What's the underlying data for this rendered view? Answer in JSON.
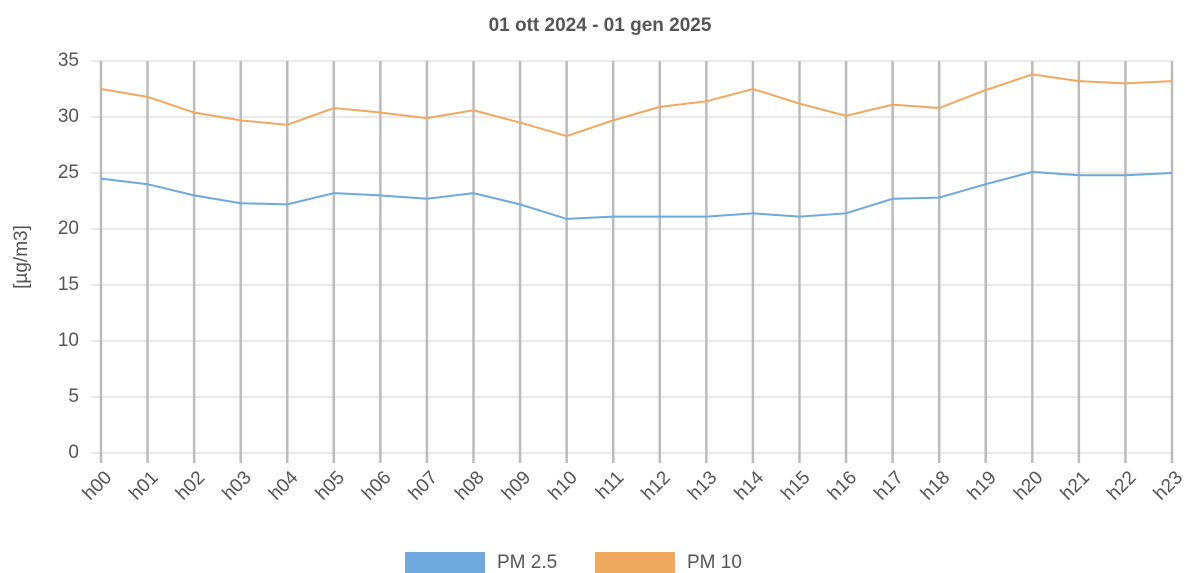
{
  "chart_data": {
    "type": "line",
    "title": "01 ott 2024 - 01 gen 2025",
    "y_label": "[µg/m3]",
    "categories": [
      "h00",
      "h01",
      "h02",
      "h03",
      "h04",
      "h05",
      "h06",
      "h07",
      "h08",
      "h09",
      "h10",
      "h11",
      "h12",
      "h13",
      "h14",
      "h15",
      "h16",
      "h17",
      "h18",
      "h19",
      "h20",
      "h21",
      "h22",
      "h23"
    ],
    "series": [
      {
        "name": "PM 2.5",
        "color": "#6fa8dc",
        "values": [
          24.5,
          24.0,
          23.0,
          22.3,
          22.2,
          23.2,
          23.0,
          22.7,
          23.2,
          22.2,
          20.9,
          21.1,
          21.1,
          21.1,
          21.4,
          21.1,
          21.4,
          22.7,
          22.8,
          24.0,
          25.1,
          24.8,
          24.8,
          25.0
        ]
      },
      {
        "name": "PM 10",
        "color": "#f0a860",
        "values": [
          32.5,
          31.8,
          30.4,
          29.7,
          29.3,
          30.8,
          30.4,
          29.9,
          30.6,
          29.5,
          28.3,
          29.7,
          30.9,
          31.4,
          32.5,
          31.2,
          30.1,
          31.1,
          30.8,
          32.4,
          33.8,
          33.2,
          33.0,
          33.2
        ]
      }
    ],
    "ylim": [
      0,
      35
    ],
    "yticks": [
      0,
      5,
      10,
      15,
      20,
      25,
      30,
      35
    ],
    "grid": true,
    "legend": "bottom"
  }
}
